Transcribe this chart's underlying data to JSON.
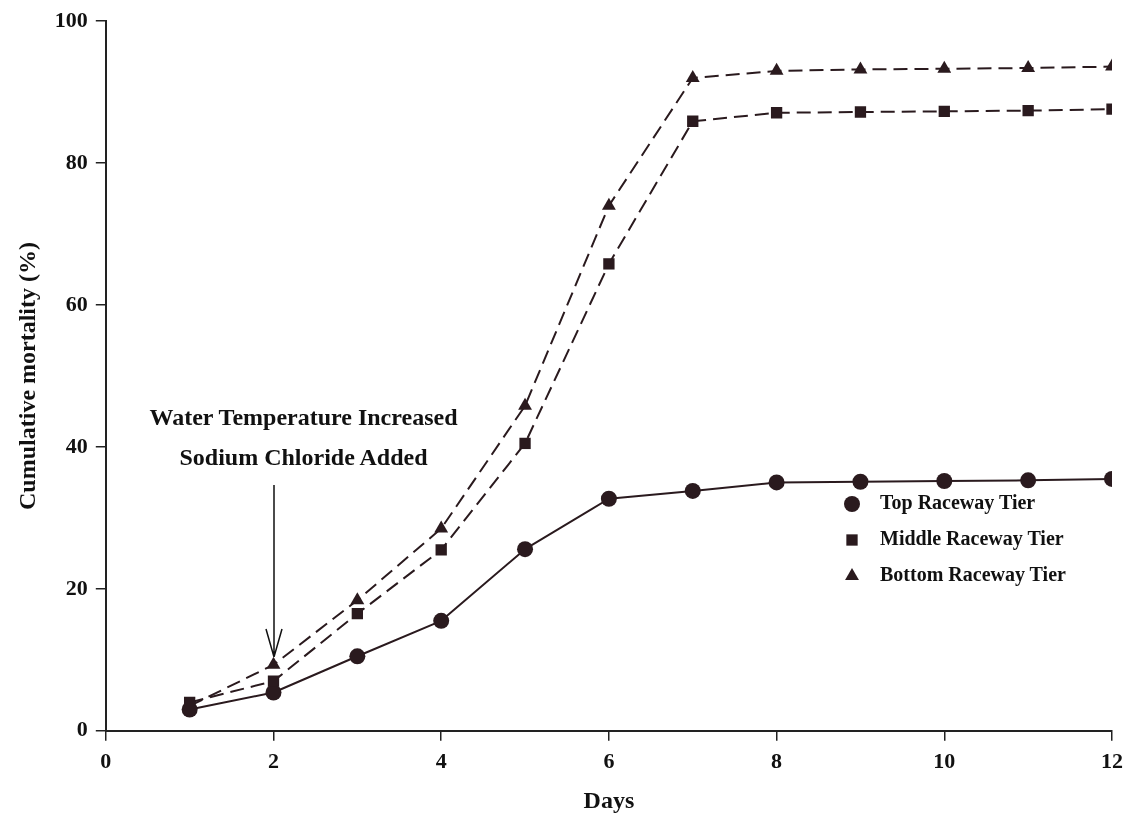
{
  "chart_data": {
    "type": "line",
    "xlabel": "Days",
    "ylabel": "Cumulative mortality (%)",
    "x": [
      1,
      2,
      3,
      4,
      5,
      6,
      7,
      8,
      9,
      10,
      11,
      12
    ],
    "series": [
      {
        "name": "Top Raceway Tier",
        "color": "#2a1a1e",
        "marker": "circle",
        "line_style": "solid",
        "values": [
          3.0,
          5.4,
          10.5,
          15.5,
          25.6,
          32.7,
          33.8,
          35.0,
          35.1,
          35.2,
          35.3,
          35.5
        ]
      },
      {
        "name": "Middle Raceway Tier",
        "color": "#2a1a1e",
        "marker": "square",
        "line_style": "dashed",
        "values": [
          4.0,
          7.0,
          16.5,
          25.5,
          40.5,
          65.8,
          85.9,
          87.1,
          87.2,
          87.3,
          87.4,
          87.6
        ]
      },
      {
        "name": "Bottom Raceway Tier",
        "color": "#2a1a1e",
        "marker": "triangle",
        "line_style": "dashed",
        "values": [
          3.5,
          9.3,
          18.4,
          28.5,
          45.8,
          74.0,
          92.0,
          93.0,
          93.2,
          93.3,
          93.4,
          93.6
        ]
      }
    ],
    "xlim": [
      0,
      12
    ],
    "xticks": [
      0,
      2,
      4,
      6,
      8,
      10,
      12
    ],
    "ylim": [
      0,
      100
    ],
    "yticks": [
      0,
      20,
      40,
      60,
      80,
      100
    ],
    "grid": false,
    "legend": "right",
    "annotations": [
      {
        "text": "Water Temperature Increased\nSodium Chloride Added",
        "x": 2,
        "y": 9.3
      }
    ]
  }
}
